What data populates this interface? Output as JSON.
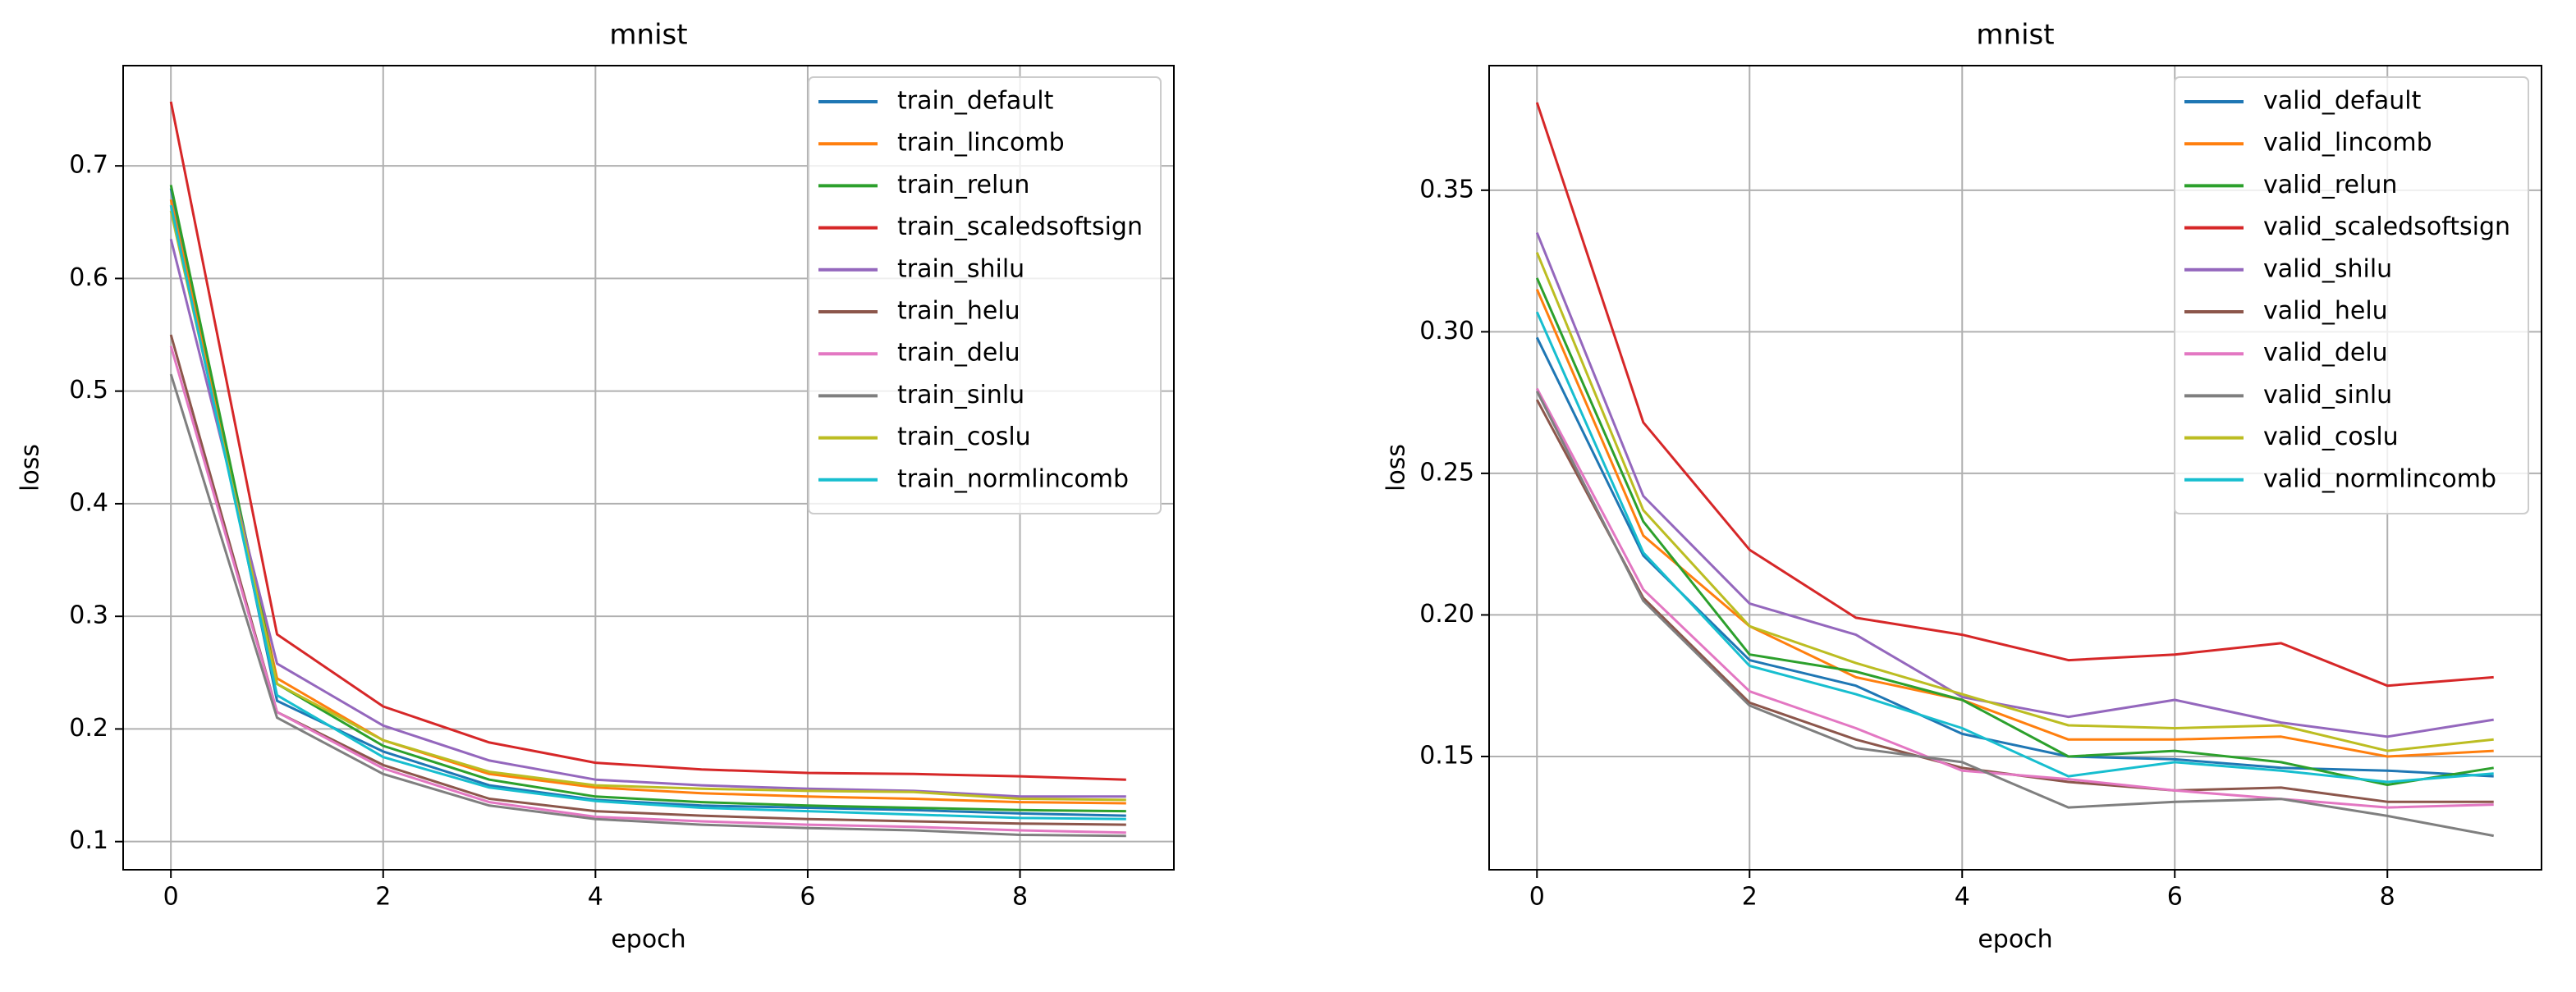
{
  "chart_data": [
    {
      "type": "line",
      "title": "mnist",
      "x_label": "epoch",
      "y_label": "loss",
      "x": [
        0,
        1,
        2,
        3,
        4,
        5,
        6,
        7,
        8,
        9
      ],
      "xlim": [
        -0.45,
        9.45
      ],
      "xticks": [
        0,
        2,
        4,
        6,
        8
      ],
      "ylim": [
        0.075,
        0.789
      ],
      "yticks": [
        0.1,
        0.2,
        0.3,
        0.4,
        0.5,
        0.6,
        0.7
      ],
      "grid": true,
      "legend_loc": "upper right",
      "series": [
        {
          "name": "train_default",
          "color": "#1f77b4",
          "values": [
            0.68,
            0.225,
            0.18,
            0.15,
            0.137,
            0.132,
            0.13,
            0.128,
            0.125,
            0.123
          ]
        },
        {
          "name": "train_lincomb",
          "color": "#ff7f0e",
          "values": [
            0.67,
            0.245,
            0.19,
            0.16,
            0.148,
            0.143,
            0.14,
            0.138,
            0.135,
            0.134
          ]
        },
        {
          "name": "train_relun",
          "color": "#2ca02c",
          "values": [
            0.683,
            0.24,
            0.185,
            0.155,
            0.14,
            0.135,
            0.132,
            0.13,
            0.128,
            0.127
          ]
        },
        {
          "name": "train_scaledsoftsign",
          "color": "#d62728",
          "values": [
            0.757,
            0.284,
            0.22,
            0.188,
            0.17,
            0.164,
            0.161,
            0.16,
            0.158,
            0.155
          ]
        },
        {
          "name": "train_shilu",
          "color": "#9467bd",
          "values": [
            0.635,
            0.258,
            0.203,
            0.172,
            0.155,
            0.15,
            0.147,
            0.145,
            0.14,
            0.14
          ]
        },
        {
          "name": "train_helu",
          "color": "#8c564b",
          "values": [
            0.55,
            0.215,
            0.168,
            0.138,
            0.127,
            0.123,
            0.12,
            0.118,
            0.116,
            0.115
          ]
        },
        {
          "name": "train_delu",
          "color": "#e377c2",
          "values": [
            0.54,
            0.215,
            0.165,
            0.135,
            0.122,
            0.118,
            0.115,
            0.113,
            0.11,
            0.108
          ]
        },
        {
          "name": "train_sinlu",
          "color": "#7f7f7f",
          "values": [
            0.515,
            0.21,
            0.16,
            0.132,
            0.12,
            0.115,
            0.112,
            0.11,
            0.106,
            0.105
          ]
        },
        {
          "name": "train_coslu",
          "color": "#bcbd22",
          "values": [
            0.66,
            0.24,
            0.19,
            0.162,
            0.15,
            0.147,
            0.145,
            0.144,
            0.138,
            0.137
          ]
        },
        {
          "name": "train_normlincomb",
          "color": "#17becf",
          "values": [
            0.665,
            0.23,
            0.175,
            0.148,
            0.136,
            0.13,
            0.127,
            0.124,
            0.121,
            0.12
          ]
        }
      ]
    },
    {
      "type": "line",
      "title": "mnist",
      "x_label": "epoch",
      "y_label": "loss",
      "x": [
        0,
        1,
        2,
        3,
        4,
        5,
        6,
        7,
        8,
        9
      ],
      "xlim": [
        -0.45,
        9.45
      ],
      "xticks": [
        0,
        2,
        4,
        6,
        8
      ],
      "ylim": [
        0.11,
        0.394
      ],
      "yticks": [
        0.15,
        {
          "value": 0.2,
          "label": "0.20"
        },
        0.25,
        {
          "value": 0.3,
          "label": "0.30"
        },
        0.35
      ],
      "grid": true,
      "legend_loc": "upper right",
      "series": [
        {
          "name": "valid_default",
          "color": "#1f77b4",
          "values": [
            0.298,
            0.221,
            0.184,
            0.175,
            0.158,
            0.15,
            0.149,
            0.146,
            0.145,
            0.143
          ]
        },
        {
          "name": "valid_lincomb",
          "color": "#ff7f0e",
          "values": [
            0.315,
            0.228,
            0.196,
            0.178,
            0.17,
            0.156,
            0.156,
            0.157,
            0.15,
            0.152
          ]
        },
        {
          "name": "valid_relun",
          "color": "#2ca02c",
          "values": [
            0.319,
            0.233,
            0.186,
            0.18,
            0.17,
            0.15,
            0.152,
            0.148,
            0.14,
            0.146
          ]
        },
        {
          "name": "valid_scaledsoftsign",
          "color": "#d62728",
          "values": [
            0.381,
            0.268,
            0.223,
            0.199,
            0.193,
            0.184,
            0.186,
            0.19,
            0.175,
            0.178
          ]
        },
        {
          "name": "valid_shilu",
          "color": "#9467bd",
          "values": [
            0.335,
            0.242,
            0.204,
            0.193,
            0.171,
            0.164,
            0.17,
            0.162,
            0.157,
            0.163
          ]
        },
        {
          "name": "valid_helu",
          "color": "#8c564b",
          "values": [
            0.276,
            0.206,
            0.169,
            0.156,
            0.146,
            0.141,
            0.138,
            0.139,
            0.134,
            0.134
          ]
        },
        {
          "name": "valid_delu",
          "color": "#e377c2",
          "values": [
            0.28,
            0.209,
            0.173,
            0.16,
            0.145,
            0.142,
            0.138,
            0.135,
            0.132,
            0.133
          ]
        },
        {
          "name": "valid_sinlu",
          "color": "#7f7f7f",
          "values": [
            0.279,
            0.205,
            0.168,
            0.153,
            0.148,
            0.132,
            0.134,
            0.135,
            0.129,
            0.122
          ]
        },
        {
          "name": "valid_coslu",
          "color": "#bcbd22",
          "values": [
            0.328,
            0.237,
            0.196,
            0.183,
            0.172,
            0.161,
            0.16,
            0.161,
            0.152,
            0.156
          ]
        },
        {
          "name": "valid_normlincomb",
          "color": "#17becf",
          "values": [
            0.307,
            0.222,
            0.182,
            0.172,
            0.16,
            0.143,
            0.148,
            0.145,
            0.141,
            0.144
          ]
        }
      ]
    }
  ]
}
